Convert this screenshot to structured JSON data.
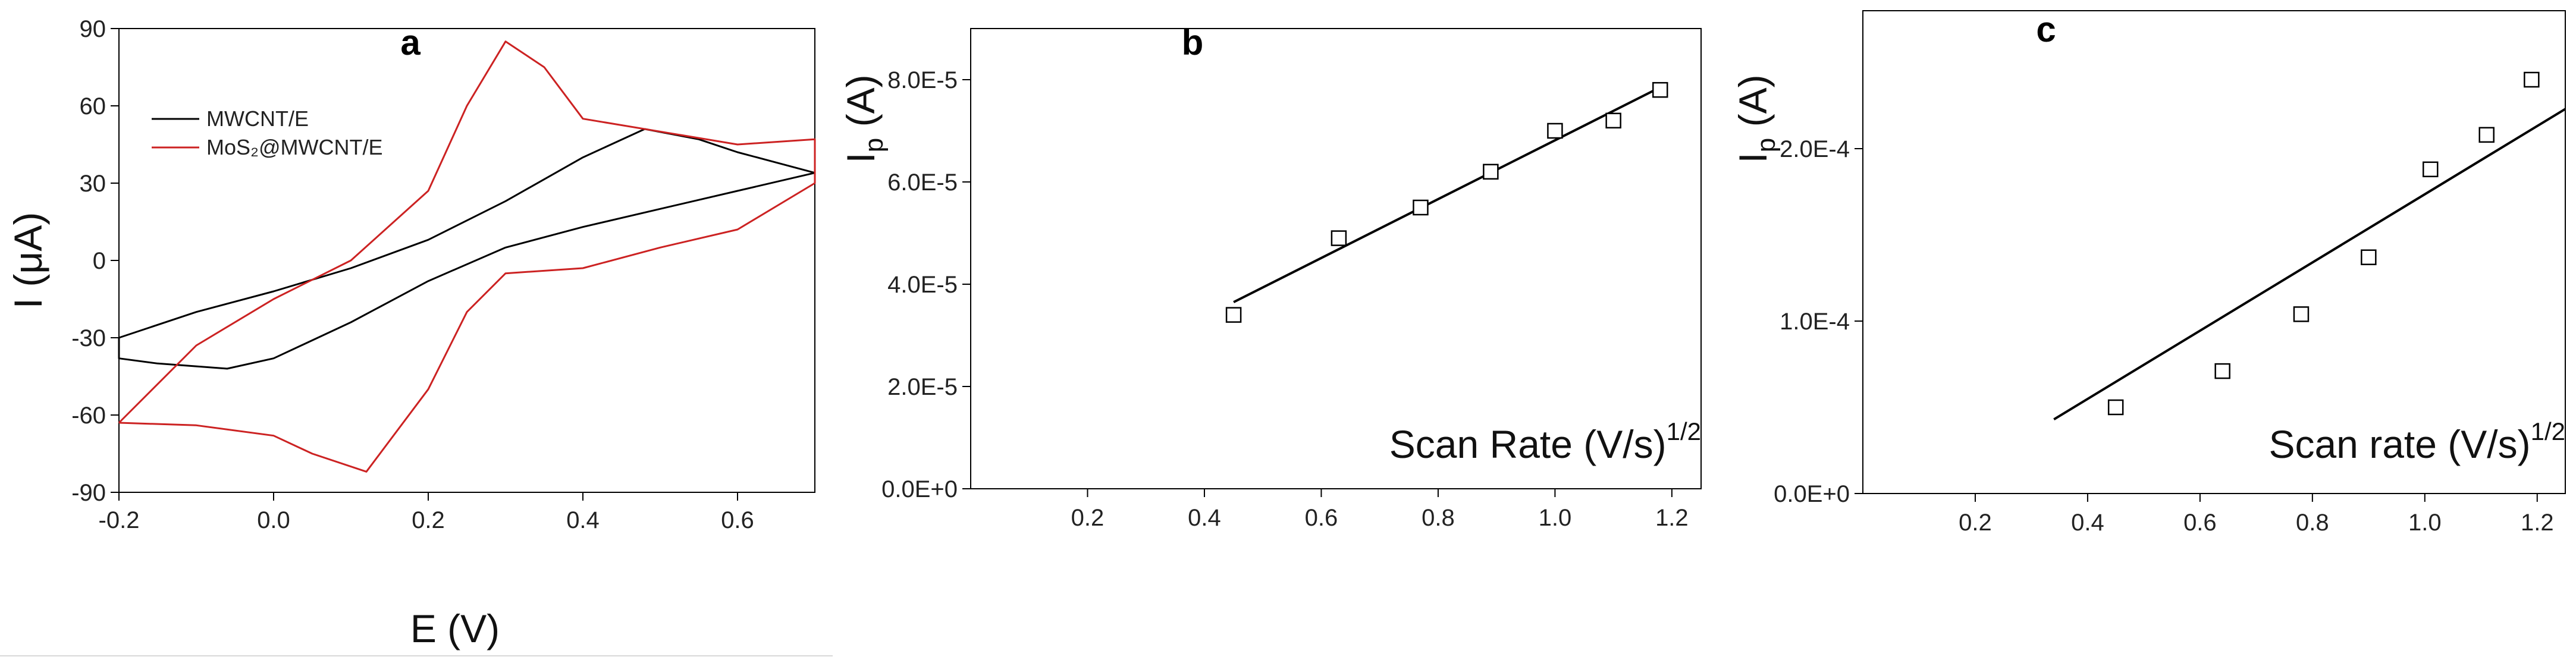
{
  "chart_data": [
    {
      "panel_label": "a",
      "type": "line",
      "xlabel": "E (V)",
      "ylabel": "I (μA)",
      "xlim": [
        -0.2,
        0.7
      ],
      "ylim": [
        -90,
        90
      ],
      "x_ticks": [
        -0.2,
        0.0,
        0.2,
        0.4,
        0.6
      ],
      "x_tick_labels": [
        "-0.2",
        "0.0",
        "0.2",
        "0.4",
        "0.6"
      ],
      "y_ticks": [
        -90,
        -60,
        -30,
        0,
        30,
        60,
        90
      ],
      "y_tick_labels": [
        "-90",
        "-60",
        "-30",
        "0",
        "30",
        "60",
        "90"
      ],
      "legend": {
        "position": "top-left"
      },
      "series": [
        {
          "name": "MWCNT/E",
          "color": "#000000",
          "x": [
            -0.2,
            -0.1,
            0.0,
            0.1,
            0.2,
            0.3,
            0.4,
            0.48,
            0.55,
            0.6,
            0.65,
            0.7,
            0.6,
            0.5,
            0.4,
            0.3,
            0.2,
            0.1,
            0.0,
            -0.06,
            -0.15,
            -0.2
          ],
          "y": [
            -30,
            -20,
            -12,
            -3,
            8,
            23,
            40,
            51,
            47,
            42,
            38,
            34,
            27,
            20,
            13,
            5,
            -8,
            -24,
            -38,
            -42,
            -40,
            -38
          ]
        },
        {
          "name": "MoS₂@MWCNT/E",
          "color": "#cc2222",
          "x": [
            -0.2,
            -0.1,
            0.0,
            0.1,
            0.2,
            0.25,
            0.3,
            0.35,
            0.4,
            0.5,
            0.6,
            0.7,
            0.7,
            0.6,
            0.5,
            0.4,
            0.3,
            0.25,
            0.2,
            0.12,
            0.05,
            0.0,
            -0.1,
            -0.2
          ],
          "y": [
            -63,
            -33,
            -15,
            0,
            27,
            60,
            85,
            75,
            55,
            50,
            45,
            47,
            30,
            12,
            5,
            -3,
            -5,
            -20,
            -50,
            -82,
            -75,
            -68,
            -64,
            -63
          ]
        }
      ]
    },
    {
      "panel_label": "b",
      "type": "scatter",
      "xlabel": "Scan Rate (V/s)",
      "xlabel_sup": "1/2",
      "ylabel": "I",
      "ylabel_sub": "p",
      "ylabel_unit": "(A)",
      "xlim": [
        0.0,
        1.25
      ],
      "ylim": [
        0.0,
        9e-05
      ],
      "x_ticks": [
        0.2,
        0.4,
        0.6,
        0.8,
        1.0,
        1.2
      ],
      "x_tick_labels": [
        "0.2",
        "0.4",
        "0.6",
        "0.8",
        "1.0",
        "1.2"
      ],
      "y_ticks": [
        0.0,
        2e-05,
        4e-05,
        6e-05,
        8e-05
      ],
      "y_tick_labels": [
        "0.0E+0",
        "2.0E-5",
        "4.0E-5",
        "6.0E-5",
        "8.0E-5"
      ],
      "series": [
        {
          "marker": "open-square",
          "x": [
            0.45,
            0.63,
            0.77,
            0.89,
            1.0,
            1.1,
            1.18
          ],
          "y": [
            3.4e-05,
            4.9e-05,
            5.5e-05,
            6.2e-05,
            7e-05,
            7.2e-05,
            7.8e-05
          ]
        }
      ],
      "fit_line": {
        "x": [
          0.45,
          1.18
        ],
        "y": [
          3.65e-05,
          7.85e-05
        ]
      }
    },
    {
      "panel_label": "c",
      "type": "scatter",
      "xlabel": "Scan rate (V/s)",
      "xlabel_sup": "1/2",
      "ylabel": "I",
      "ylabel_sub": "p",
      "ylabel_unit": "(A)",
      "xlim": [
        0.0,
        1.25
      ],
      "ylim": [
        0.0,
        0.00028
      ],
      "x_ticks": [
        0.2,
        0.4,
        0.6,
        0.8,
        1.0,
        1.2
      ],
      "x_tick_labels": [
        "0.2",
        "0.4",
        "0.6",
        "0.8",
        "1.0",
        "1.2"
      ],
      "y_ticks": [
        0.0,
        0.0001,
        0.0002
      ],
      "y_tick_labels": [
        "0.0E+0",
        "1.0E-4",
        "2.0E-4"
      ],
      "series": [
        {
          "marker": "open-square",
          "x": [
            0.45,
            0.64,
            0.78,
            0.9,
            1.01,
            1.11,
            1.19
          ],
          "y": [
            5e-05,
            7.1e-05,
            0.000104,
            0.000137,
            0.000188,
            0.000208,
            0.00024
          ]
        }
      ],
      "fit_line": {
        "x": [
          0.34,
          1.25
        ],
        "y": [
          4.3e-05,
          0.000223
        ]
      }
    }
  ]
}
